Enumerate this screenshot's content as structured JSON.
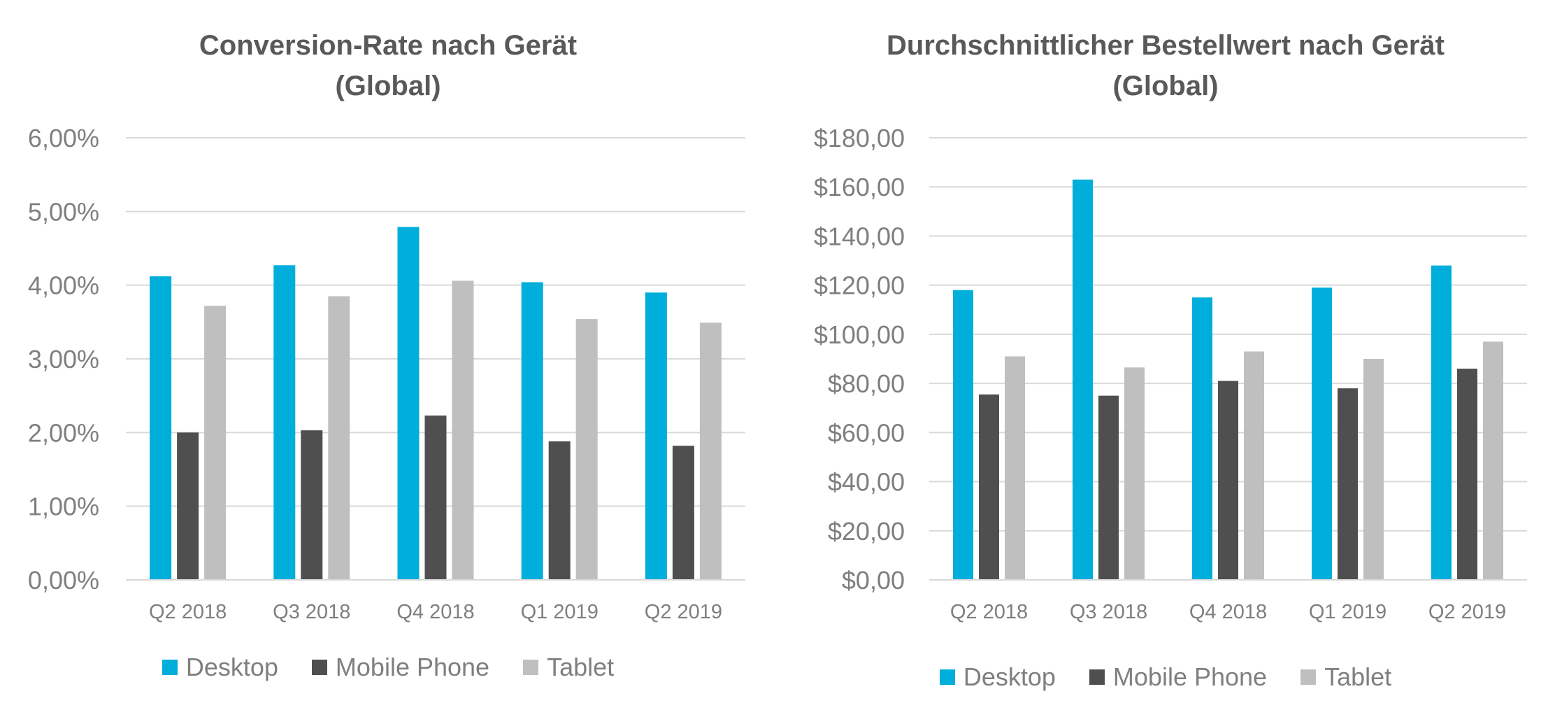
{
  "colors": {
    "desktop": "#00AEDB",
    "mobile": "#4F4F4F",
    "tablet": "#BFBFBF",
    "grid": "#D9D9D9",
    "text": "#595959",
    "axis": "#7F7F7F"
  },
  "chart_data": [
    {
      "type": "bar",
      "title_lines": [
        "Conversion-Rate nach Gerät",
        "(Global)"
      ],
      "categories": [
        "Q2 2018",
        "Q3 2018",
        "Q4 2018",
        "Q1 2019",
        "Q2 2019"
      ],
      "series": [
        {
          "name": "Desktop",
          "color_key": "desktop",
          "values": [
            4.12,
            4.27,
            4.79,
            4.04,
            3.9
          ]
        },
        {
          "name": "Mobile Phone",
          "color_key": "mobile",
          "values": [
            2.0,
            2.03,
            2.23,
            1.88,
            1.82
          ]
        },
        {
          "name": "Tablet",
          "color_key": "tablet",
          "values": [
            3.72,
            3.85,
            4.06,
            3.54,
            3.49
          ]
        }
      ],
      "ylim": [
        0,
        6
      ],
      "yticks": [
        "0,00%",
        "1,00%",
        "2,00%",
        "3,00%",
        "4,00%",
        "5,00%",
        "6,00%"
      ],
      "legend_position": "bottom",
      "grid": true
    },
    {
      "type": "bar",
      "title_lines": [
        "Durchschnittlicher Bestellwert nach Gerät",
        "(Global)"
      ],
      "categories": [
        "Q2 2018",
        "Q3 2018",
        "Q4 2018",
        "Q1 2019",
        "Q2 2019"
      ],
      "series": [
        {
          "name": "Desktop",
          "color_key": "desktop",
          "values": [
            118,
            163,
            115,
            119,
            128
          ]
        },
        {
          "name": "Mobile Phone",
          "color_key": "mobile",
          "values": [
            75.5,
            75,
            81,
            78,
            86
          ]
        },
        {
          "name": "Tablet",
          "color_key": "tablet",
          "values": [
            91,
            86.5,
            93,
            90,
            97
          ]
        }
      ],
      "ylim": [
        0,
        180
      ],
      "yticks": [
        "$0,00",
        "$20,00",
        "$40,00",
        "$60,00",
        "$80,00",
        "$100,00",
        "$120,00",
        "$140,00",
        "$160,00",
        "$180,00"
      ],
      "legend_position": "bottom",
      "grid": true
    }
  ]
}
